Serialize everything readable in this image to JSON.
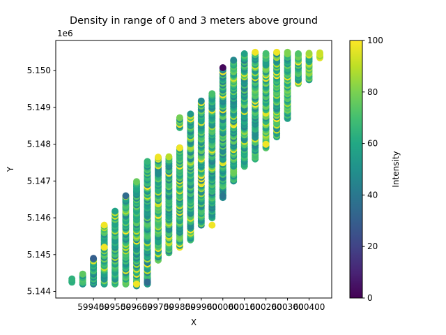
{
  "chart_data": {
    "type": "scatter",
    "title": "Density in range of 0 and 3 meters above ground",
    "xlabel": "X",
    "ylabel": "Y",
    "y_offset_label": "1e6",
    "xlim": [
      599225,
      600505
    ],
    "ylim": [
      5143820,
      5150820
    ],
    "x_ticks": [
      599400,
      599500,
      599600,
      599700,
      599800,
      599900,
      600000,
      600100,
      600200,
      600300,
      600400
    ],
    "y_ticks": [
      {
        "value": 5144000,
        "label": "5.144"
      },
      {
        "value": 5145000,
        "label": "5.145"
      },
      {
        "value": 5146000,
        "label": "5.146"
      },
      {
        "value": 5147000,
        "label": "5.147"
      },
      {
        "value": 5148000,
        "label": "5.148"
      },
      {
        "value": 5149000,
        "label": "5.149"
      },
      {
        "value": 5150000,
        "label": "5.150"
      }
    ],
    "colorbar": {
      "label": "Intensity",
      "colormap": "viridis",
      "range": [
        0,
        100
      ],
      "ticks": [
        0,
        20,
        40,
        60,
        80,
        100
      ]
    },
    "columns": [
      {
        "x": 599300,
        "y_min": 5144250,
        "y_max": 5144350,
        "intensity_mean": 58
      },
      {
        "x": 599350,
        "y_min": 5144200,
        "y_max": 5144500,
        "intensity_mean": 62
      },
      {
        "x": 599400,
        "y_min": 5144200,
        "y_max": 5144900,
        "intensity_mean": 55
      },
      {
        "x": 599450,
        "y_min": 5144200,
        "y_max": 5145800,
        "intensity_mean": 65
      },
      {
        "x": 599500,
        "y_min": 5144200,
        "y_max": 5146200,
        "intensity_mean": 62
      },
      {
        "x": 599550,
        "y_min": 5144200,
        "y_max": 5146600,
        "intensity_mean": 60
      },
      {
        "x": 599600,
        "y_min": 5144150,
        "y_max": 5147000,
        "intensity_mean": 62
      },
      {
        "x": 599650,
        "y_min": 5144200,
        "y_max": 5147550,
        "intensity_mean": 60
      },
      {
        "x": 599700,
        "y_min": 5144850,
        "y_max": 5147650,
        "intensity_mean": 63
      },
      {
        "x": 599750,
        "y_min": 5145050,
        "y_max": 5147700,
        "intensity_mean": 62
      },
      {
        "x": 599800,
        "y_min": 5145200,
        "y_max": 5147900,
        "intensity_mean": 64
      },
      {
        "x": 599800,
        "y_min": 5148450,
        "y_max": 5148750,
        "intensity_mean": 65
      },
      {
        "x": 599850,
        "y_min": 5145400,
        "y_max": 5148850,
        "intensity_mean": 62
      },
      {
        "x": 599900,
        "y_min": 5145800,
        "y_max": 5149200,
        "intensity_mean": 62
      },
      {
        "x": 599950,
        "y_min": 5146000,
        "y_max": 5149400,
        "intensity_mean": 60
      },
      {
        "x": 600000,
        "y_min": 5146550,
        "y_max": 5150100,
        "intensity_mean": 60
      },
      {
        "x": 600050,
        "y_min": 5147000,
        "y_max": 5150300,
        "intensity_mean": 62
      },
      {
        "x": 600100,
        "y_min": 5147400,
        "y_max": 5150500,
        "intensity_mean": 60
      },
      {
        "x": 600150,
        "y_min": 5147600,
        "y_max": 5150500,
        "intensity_mean": 62
      },
      {
        "x": 600200,
        "y_min": 5147900,
        "y_max": 5150500,
        "intensity_mean": 66
      },
      {
        "x": 600250,
        "y_min": 5148200,
        "y_max": 5150500,
        "intensity_mean": 63
      },
      {
        "x": 600300,
        "y_min": 5148700,
        "y_max": 5150500,
        "intensity_mean": 64
      },
      {
        "x": 600350,
        "y_min": 5149650,
        "y_max": 5150500,
        "intensity_mean": 62
      },
      {
        "x": 600400,
        "y_min": 5149750,
        "y_max": 5150500,
        "intensity_mean": 70
      },
      {
        "x": 600450,
        "y_min": 5150350,
        "y_max": 5150500,
        "intensity_mean": 80
      }
    ],
    "notable_points": [
      {
        "x": 600000,
        "y": 5150080,
        "intensity": 2
      },
      {
        "x": 599450,
        "y": 5145800,
        "intensity": 98
      },
      {
        "x": 599400,
        "y": 5144900,
        "intensity": 30
      },
      {
        "x": 599550,
        "y": 5146600,
        "intensity": 35
      },
      {
        "x": 600000,
        "y": 5146600,
        "intensity": 40
      },
      {
        "x": 599650,
        "y": 5144250,
        "intensity": 35
      },
      {
        "x": 599800,
        "y": 5147900,
        "intensity": 98
      },
      {
        "x": 599700,
        "y": 5147650,
        "intensity": 98
      },
      {
        "x": 599950,
        "y": 5145800,
        "intensity": 98
      },
      {
        "x": 600200,
        "y": 5148000,
        "intensity": 98
      },
      {
        "x": 600250,
        "y": 5150500,
        "intensity": 98
      },
      {
        "x": 600150,
        "y": 5150500,
        "intensity": 98
      },
      {
        "x": 599450,
        "y": 5145200,
        "intensity": 98
      },
      {
        "x": 599600,
        "y": 5144200,
        "intensity": 98
      }
    ]
  }
}
